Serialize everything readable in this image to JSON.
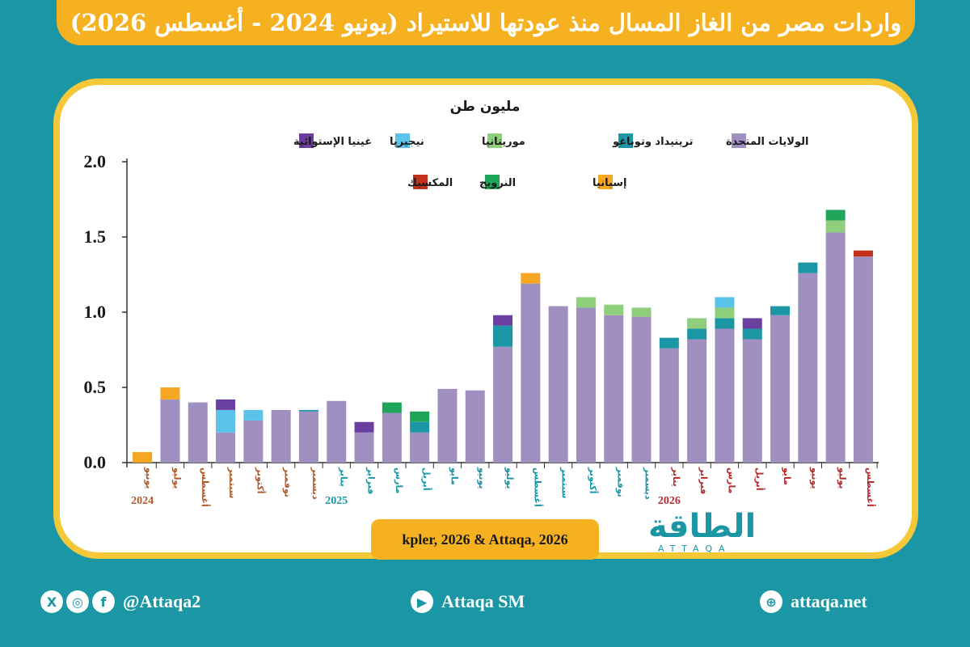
{
  "header": {
    "title": "واردات مصر من الغاز المسال منذ عودتها للاستيراد (يونيو 2024 - أغسطس 2026)"
  },
  "source": "kpler, 2026 & Attaqa, 2026",
  "logo": {
    "text": "الطاقة",
    "sub": "ATTAQA"
  },
  "footer": {
    "social": "@Attaqa2",
    "youtube": "Attaqa SM",
    "website": "attaqa.net"
  },
  "colors": {
    "background": "#1a96a4",
    "accent": "#f5b120"
  },
  "icons": [
    "x-icon",
    "instagram-icon",
    "facebook-icon",
    "youtube-icon",
    "globe-icon"
  ],
  "chart_data": {
    "type": "bar",
    "stacked": true,
    "unit_label": "مليون طن",
    "ylim": [
      0,
      2.0
    ],
    "yticks": [
      "0.0",
      "0.5",
      "1.0",
      "1.5",
      "2.0"
    ],
    "categories": [
      "يونيو",
      "يوليو",
      "أغسطس",
      "سبتمبر",
      "أكتوبر",
      "نوفمبر",
      "ديسمبر",
      "يناير",
      "فبراير",
      "مارس",
      "أبريل",
      "مايو",
      "يونيو",
      "يوليو",
      "أغسطس",
      "سبتمبر",
      "أكتوبر",
      "نوفمبر",
      "ديسمبر",
      "يناير",
      "فبراير",
      "مارس",
      "أبريل",
      "مايو",
      "يونيو",
      "يوليو",
      "أغسطس"
    ],
    "years": [
      {
        "label": "2024",
        "index": 0,
        "color": "#b05a2a"
      },
      {
        "label": "2025",
        "index": 7,
        "color": "#1a96a4"
      },
      {
        "label": "2026",
        "index": 19,
        "color": "#b52a2a"
      }
    ],
    "series": [
      {
        "name": "الولايات المتحدة",
        "color": "#a08fc1",
        "values": [
          0,
          0.42,
          0.4,
          0.2,
          0.28,
          0.35,
          0.34,
          0.41,
          0.2,
          0.33,
          0.2,
          0.49,
          0.48,
          0.77,
          1.19,
          1.04,
          1.03,
          0.98,
          0.97,
          0.76,
          0.82,
          0.89,
          0.82,
          0.98,
          1.26,
          1.53,
          1.37
        ]
      },
      {
        "name": "ترينيداد وتوباغو",
        "color": "#1a96a4",
        "values": [
          0,
          0,
          0,
          0,
          0,
          0,
          0.01,
          0,
          0,
          0,
          0.07,
          0,
          0,
          0.14,
          0,
          0,
          0,
          0,
          0,
          0.07,
          0.07,
          0.07,
          0.07,
          0.06,
          0.07,
          0,
          0
        ]
      },
      {
        "name": "موريتانيا",
        "color": "#8fce7a",
        "values": [
          0,
          0,
          0,
          0,
          0,
          0,
          0,
          0,
          0,
          0,
          0,
          0,
          0,
          0,
          0,
          0,
          0.07,
          0.07,
          0.06,
          0,
          0.07,
          0.07,
          0,
          0,
          0,
          0.08,
          0
        ]
      },
      {
        "name": "نيجيريا",
        "color": "#5bc3ea",
        "values": [
          0,
          0,
          0,
          0.15,
          0.07,
          0,
          0,
          0,
          0,
          0,
          0,
          0,
          0,
          0,
          0,
          0,
          0,
          0,
          0,
          0,
          0,
          0.07,
          0,
          0,
          0,
          0,
          0
        ]
      },
      {
        "name": "غينيا الإستوائية",
        "color": "#6b3fa0",
        "values": [
          0,
          0,
          0,
          0.07,
          0,
          0,
          0,
          0,
          0.07,
          0,
          0,
          0,
          0,
          0.07,
          0,
          0,
          0,
          0,
          0,
          0,
          0,
          0,
          0.07,
          0,
          0,
          0,
          0
        ]
      },
      {
        "name": "إسبانيا",
        "color": "#f5a623",
        "values": [
          0.07,
          0.08,
          0,
          0,
          0,
          0,
          0,
          0,
          0,
          0,
          0,
          0,
          0,
          0,
          0.07,
          0,
          0,
          0,
          0,
          0,
          0,
          0,
          0,
          0,
          0,
          0,
          0
        ]
      },
      {
        "name": "النرويج",
        "color": "#1fa55a",
        "values": [
          0,
          0,
          0,
          0,
          0,
          0,
          0,
          0,
          0,
          0.07,
          0.07,
          0,
          0,
          0,
          0,
          0,
          0,
          0,
          0,
          0,
          0,
          0,
          0,
          0,
          0,
          0.07,
          0
        ]
      },
      {
        "name": "المكسيك",
        "color": "#c1321c",
        "values": [
          0,
          0,
          0,
          0,
          0,
          0,
          0,
          0,
          0,
          0,
          0,
          0,
          0,
          0,
          0,
          0,
          0,
          0,
          0,
          0,
          0,
          0,
          0,
          0,
          0,
          0,
          0.04
        ]
      }
    ]
  }
}
